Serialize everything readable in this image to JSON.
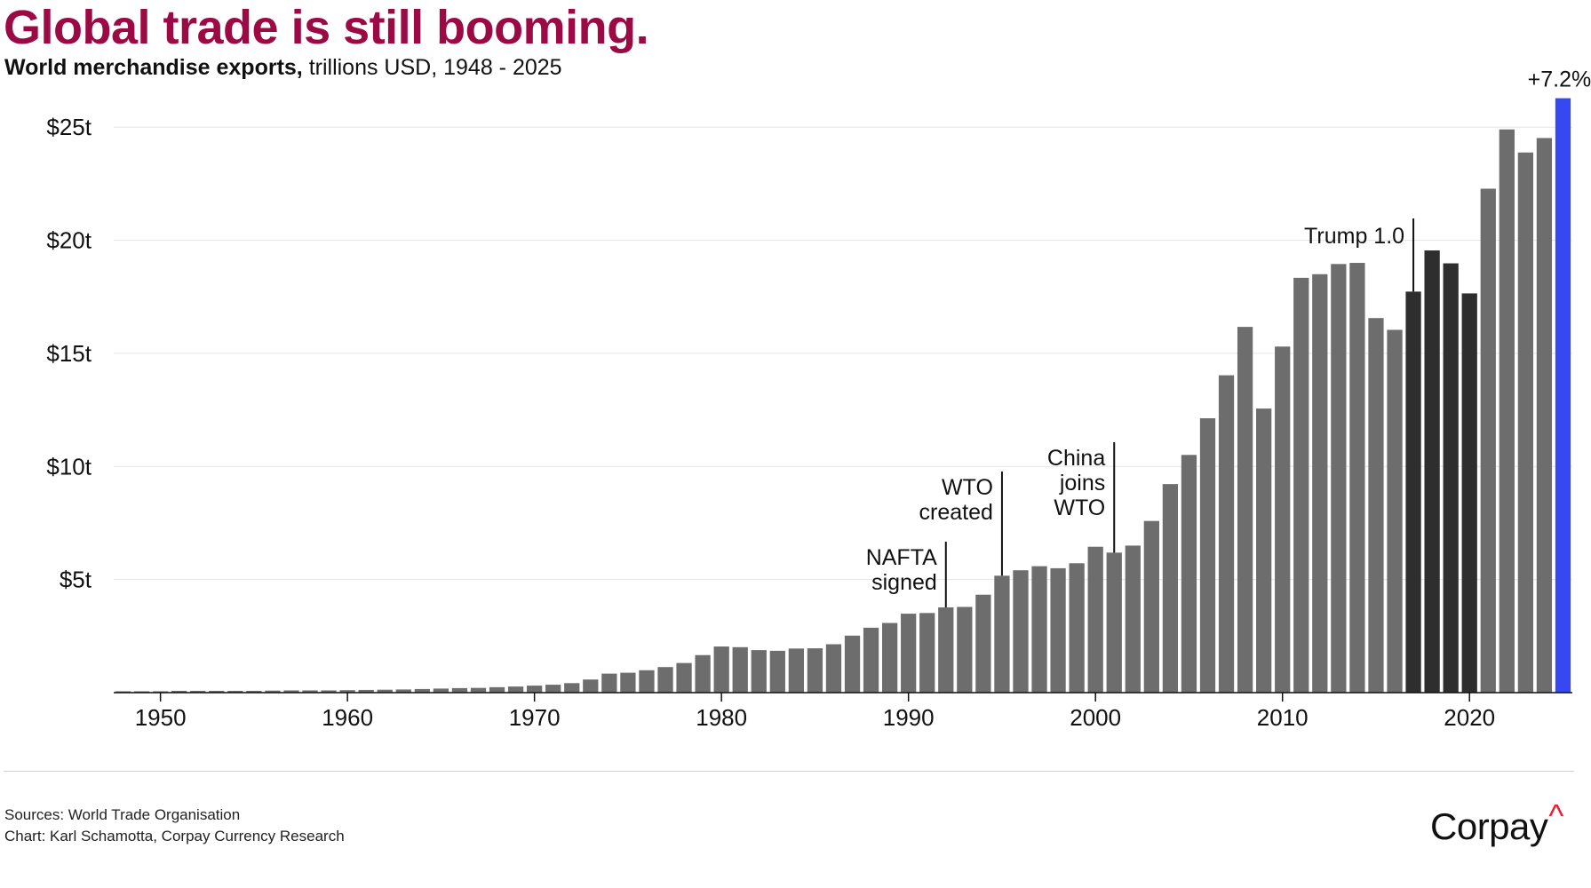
{
  "header": {
    "title": "Global trade is still booming.",
    "subtitle_bold": "World merchandise exports,",
    "subtitle_rest": " trillions USD, 1948 - 2025"
  },
  "footer": {
    "sources": "Sources: World Trade Organisation",
    "credit": "Chart: Karl Schamotta, Corpay Currency Research",
    "logo_text": "Corpay",
    "logo_mark": "^"
  },
  "colors": {
    "title": "#9c0a45",
    "bar_default": "#6d6d6d",
    "bar_highlight": "#2e2e2e",
    "bar_latest": "#3548f2",
    "gridline": "#e6e6e6"
  },
  "chart_data": {
    "type": "bar",
    "x_range": [
      1948,
      2025
    ],
    "ylim": [
      0,
      26.5
    ],
    "yticks": [
      5,
      10,
      15,
      20,
      25
    ],
    "ytick_labels": [
      "$5t",
      "$10t",
      "$15t",
      "$20t",
      "$25t"
    ],
    "xticks": [
      1950,
      1960,
      1970,
      1980,
      1990,
      2000,
      2010,
      2020
    ],
    "xtick_labels": [
      "1950",
      "1960",
      "1970",
      "1980",
      "1990",
      "2000",
      "2010",
      "2020"
    ],
    "grid": "horizontal",
    "values": [
      0.06,
      0.06,
      0.06,
      0.08,
      0.08,
      0.08,
      0.08,
      0.08,
      0.09,
      0.1,
      0.1,
      0.1,
      0.11,
      0.12,
      0.13,
      0.14,
      0.16,
      0.18,
      0.2,
      0.21,
      0.24,
      0.27,
      0.31,
      0.35,
      0.42,
      0.58,
      0.84,
      0.88,
      0.99,
      1.13,
      1.31,
      1.66,
      2.04,
      2.01,
      1.88,
      1.85,
      1.95,
      1.96,
      2.14,
      2.52,
      2.87,
      3.08,
      3.49,
      3.52,
      3.77,
      3.79,
      4.33,
      5.17,
      5.41,
      5.59,
      5.5,
      5.72,
      6.45,
      6.19,
      6.5,
      7.59,
      9.22,
      10.51,
      12.13,
      14.03,
      16.17,
      12.56,
      15.3,
      18.34,
      18.5,
      18.95,
      19.0,
      16.56,
      16.04,
      17.73,
      19.55,
      18.98,
      17.65,
      22.28,
      24.9,
      23.88,
      24.52,
      26.28
    ],
    "highlight_years": [
      2017,
      2018,
      2019,
      2020
    ],
    "latest_year": 2025,
    "latest_label": "+7.2%",
    "annotations": [
      {
        "year": 1992,
        "lines": [
          "NAFTA",
          "signed"
        ]
      },
      {
        "year": 1995,
        "lines": [
          "WTO",
          "created"
        ]
      },
      {
        "year": 2001,
        "lines": [
          "China",
          "joins",
          "WTO"
        ]
      },
      {
        "year": 2017,
        "lines": [
          "Trump 1.0"
        ]
      }
    ]
  }
}
